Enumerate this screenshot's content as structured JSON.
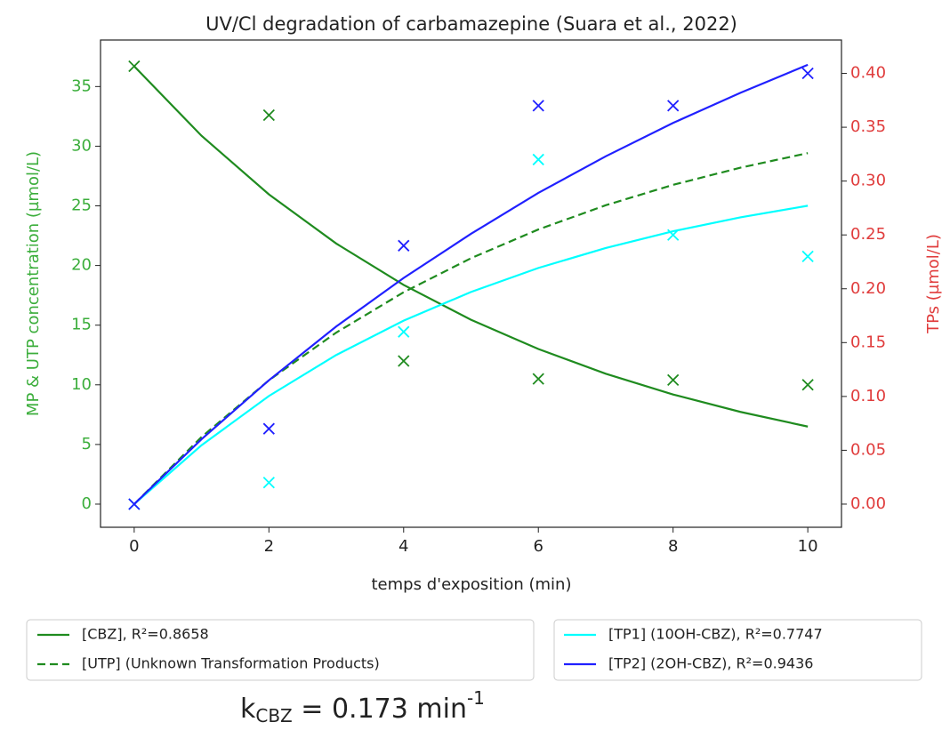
{
  "chart_data": {
    "type": "line",
    "title": "UV/Cl degradation of carbamazepine (Suara et al., 2022)",
    "x_label": "temps d'exposition (min)",
    "y_label": "MP & UTP concentration (µmol/L)",
    "y2_label": "TPs (µmol/L)",
    "x": [
      0,
      1,
      2,
      3,
      4,
      5,
      6,
      7,
      8,
      9,
      10
    ],
    "measured_x": [
      0,
      2,
      4,
      6,
      8,
      10
    ],
    "xlim": [
      -0.5,
      10.5
    ],
    "xticks": [
      0,
      2,
      4,
      6,
      8,
      10
    ],
    "ylim": [
      -1.94,
      38.9
    ],
    "yticks": [
      0,
      5,
      10,
      15,
      20,
      25,
      30,
      35
    ],
    "y2lim": [
      -0.0215,
      0.431
    ],
    "y2ticks": [
      {
        "value": 0,
        "label": "0.00"
      },
      {
        "value": 0.05,
        "label": "0.05"
      },
      {
        "value": 0.1,
        "label": "0.10"
      },
      {
        "value": 0.15,
        "label": "0.15"
      },
      {
        "value": 0.2,
        "label": "0.20"
      },
      {
        "value": 0.25,
        "label": "0.25"
      },
      {
        "value": 0.3,
        "label": "0.30"
      },
      {
        "value": 0.35,
        "label": "0.35"
      },
      {
        "value": 0.4,
        "label": "0.40"
      }
    ],
    "y_color": "#3cae3c",
    "y2_color": "#e03c3c",
    "series": [
      {
        "name": "[CBZ], R²=0.8658",
        "color": "#1f8b1f",
        "dash": false,
        "axis": "y",
        "values": [
          36.7,
          30.87,
          25.96,
          21.84,
          18.37,
          15.45,
          13.0,
          10.93,
          9.19,
          7.73,
          6.5
        ],
        "measured": [
          36.7,
          32.6,
          12.0,
          10.5,
          10.4,
          10.0
        ]
      },
      {
        "name": "[UTP] (Unknown Transformation Products)",
        "color": "#1f8b1f",
        "dash": true,
        "axis": "y",
        "values": [
          0,
          5.63,
          10.38,
          14.38,
          17.76,
          20.61,
          23.02,
          25.05,
          26.76,
          28.2,
          29.42
        ]
      },
      {
        "name": "[TP1] (10OH-CBZ), R²=0.7747",
        "color": "#00ffff",
        "dash": false,
        "axis": "y2",
        "values": [
          0,
          0.0547,
          0.1004,
          0.1385,
          0.1704,
          0.197,
          0.2193,
          0.2378,
          0.2534,
          0.2663,
          0.2771
        ],
        "measured": [
          0,
          0.02,
          0.16,
          0.32,
          0.25,
          0.23
        ]
      },
      {
        "name": "[TP2] (2OH-CBZ), R²=0.9436",
        "color": "#2020ff",
        "dash": false,
        "axis": "y2",
        "values": [
          0,
          0.0603,
          0.115,
          0.165,
          0.21,
          0.251,
          0.289,
          0.323,
          0.354,
          0.382,
          0.408
        ],
        "measured": [
          0,
          0.07,
          0.24,
          0.37,
          0.37,
          0.4
        ]
      }
    ],
    "annotation": {
      "text": "k",
      "subscript": "CBZ",
      "rest": " = 0.173 min",
      "superscript": "-1"
    }
  }
}
